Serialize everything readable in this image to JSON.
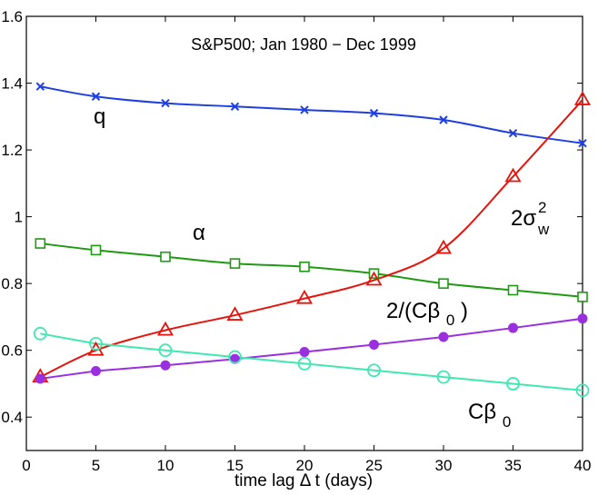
{
  "chart_data": {
    "type": "line",
    "title": "",
    "annotation": "S&P500; Jan 1980 − Dec 1999",
    "xlabel": "time lag Δ t (days)",
    "ylabel": "",
    "xlim": [
      0,
      40
    ],
    "ylim": [
      0.3,
      1.6
    ],
    "xticks": [
      0,
      5,
      10,
      15,
      20,
      25,
      30,
      35,
      40
    ],
    "xtick_labels": [
      "0",
      "5",
      "10",
      "15",
      "20",
      "25",
      "30",
      "35",
      "40"
    ],
    "yticks": [
      0.4,
      0.6,
      0.8,
      1.0,
      1.2,
      1.4,
      1.6
    ],
    "ytick_labels": [
      "0.4",
      "0.6",
      "0.8",
      "1",
      "1.2",
      "1.4",
      "1.6"
    ],
    "x": [
      1,
      5,
      10,
      15,
      20,
      25,
      30,
      35,
      40
    ],
    "series": [
      {
        "name": "q",
        "color": "#1f3fe0",
        "marker": "x",
        "smooth": true,
        "values": [
          1.39,
          1.36,
          1.34,
          1.33,
          1.32,
          1.31,
          1.29,
          1.25,
          1.22
        ]
      },
      {
        "name": "alpha",
        "color": "#1e9a12",
        "marker": "square",
        "smooth": true,
        "values": [
          0.92,
          0.9,
          0.88,
          0.86,
          0.85,
          0.83,
          0.8,
          0.78,
          0.76
        ]
      },
      {
        "name": "2sigma_w^2",
        "color": "#e8120c",
        "marker": "triangle",
        "smooth": true,
        "values": [
          0.52,
          0.6,
          0.66,
          0.705,
          0.755,
          0.81,
          0.905,
          1.12,
          1.35
        ]
      },
      {
        "name": "2/(Cbeta_0)",
        "color": "#9a2fe0",
        "marker": "dot",
        "smooth": false,
        "values": [
          0.515,
          0.538,
          0.555,
          0.574,
          0.595,
          0.617,
          0.64,
          0.667,
          0.695
        ]
      },
      {
        "name": "Cbeta_0",
        "color": "#3ee8b0",
        "marker": "circle",
        "smooth": false,
        "values": [
          0.65,
          0.62,
          0.6,
          0.58,
          0.56,
          0.54,
          0.52,
          0.5,
          0.48
        ]
      }
    ],
    "curve_labels": {
      "q": "q",
      "alpha": "α",
      "sigma_main": "2σ",
      "sigma_sub": "w",
      "sigma_sup": "2",
      "inv_main": "2/(Cβ",
      "inv_sub": "0",
      "inv_close": ")",
      "cb_main": "Cβ",
      "cb_sub": "0"
    }
  }
}
